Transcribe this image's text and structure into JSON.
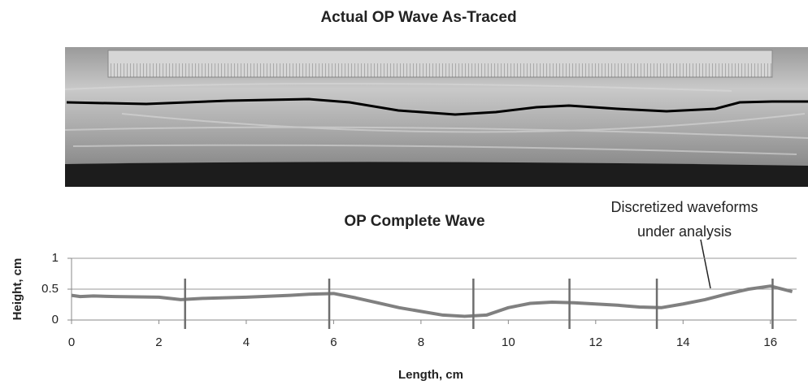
{
  "photo_title": "Actual OP Wave As-Traced",
  "chart_data": {
    "type": "line",
    "title": "OP Complete Wave",
    "annotation": [
      "Discretized waveforms",
      "under analysis"
    ],
    "x_label": "Length, cm",
    "y_label": "Height, cm",
    "x": [
      0,
      0.2,
      0.5,
      1,
      2,
      2.5,
      3,
      4,
      5,
      5.5,
      6,
      6.5,
      7,
      7.5,
      8,
      8.5,
      9,
      9.5,
      10,
      10.5,
      11,
      11.5,
      12,
      12.5,
      13,
      13.5,
      14,
      14.5,
      15,
      15.5,
      16,
      16.5
    ],
    "series": [
      {
        "color": "#808080",
        "values": [
          0.4,
          0.38,
          0.39,
          0.38,
          0.37,
          0.33,
          0.35,
          0.37,
          0.4,
          0.42,
          0.43,
          0.36,
          0.28,
          0.2,
          0.14,
          0.08,
          0.06,
          0.08,
          0.2,
          0.27,
          0.29,
          0.28,
          0.26,
          0.24,
          0.21,
          0.2,
          0.26,
          0.33,
          0.42,
          0.5,
          0.55,
          0.46
        ]
      }
    ],
    "markers": [
      2.6,
      5.9,
      9.2,
      11.4,
      13.4,
      16.05
    ],
    "marker_color": "#6e6e6e",
    "xlim": [
      0,
      16.6
    ],
    "ylim": [
      0,
      1
    ],
    "xticks": [
      0,
      2,
      4,
      6,
      8,
      10,
      12,
      14,
      16
    ],
    "yticks": [
      0,
      0.5,
      1
    ],
    "grid": true
  }
}
